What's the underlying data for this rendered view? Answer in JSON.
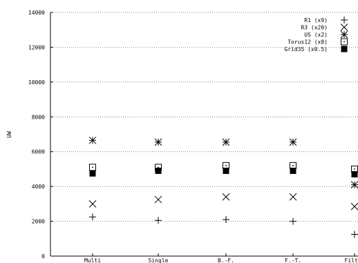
{
  "chart_data": {
    "type": "scatter",
    "title": "",
    "xlabel": "",
    "ylabel": "UW",
    "ylim": [
      0,
      14000
    ],
    "yticks": [
      0,
      2000,
      4000,
      6000,
      8000,
      10000,
      12000,
      14000
    ],
    "grid": "horizontal dotted lines at y ticks",
    "legend_position": "top-right",
    "categories": [
      "Multi",
      "Single",
      "B.-F.",
      "F.-T.",
      "Filter"
    ],
    "series": [
      {
        "name": "R1 (x9)",
        "marker": "plus",
        "values": [
          2250,
          2050,
          2100,
          2000,
          1250
        ]
      },
      {
        "name": "R3 (x20)",
        "marker": "cross",
        "values": [
          3000,
          3250,
          3400,
          3400,
          2850
        ]
      },
      {
        "name": "US (x2)",
        "marker": "star",
        "values": [
          6650,
          6550,
          6550,
          6550,
          4100
        ]
      },
      {
        "name": "Torus12 (x8)",
        "marker": "dotted-square",
        "values": [
          5100,
          5100,
          5200,
          5200,
          5000
        ]
      },
      {
        "name": "Grid35 (x0.5)",
        "marker": "filled-square",
        "values": [
          4750,
          4900,
          4900,
          4900,
          4700
        ]
      }
    ]
  }
}
